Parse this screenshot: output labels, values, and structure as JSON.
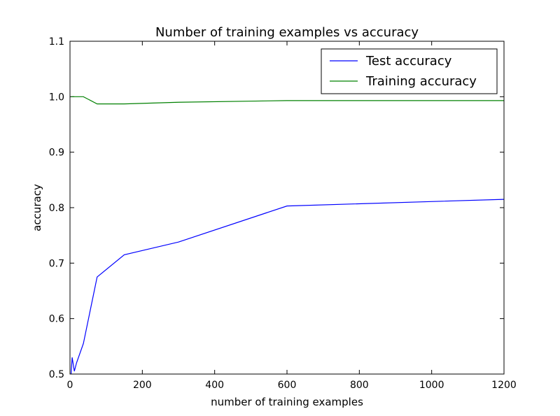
{
  "chart_data": {
    "type": "line",
    "title": "Number of training examples vs accuracy",
    "xlabel": "number of training examples",
    "ylabel": "accuracy",
    "xlim": [
      0,
      1200
    ],
    "ylim": [
      0.5,
      1.1
    ],
    "xticks": [
      0,
      200,
      400,
      600,
      800,
      1000,
      1200
    ],
    "yticks": [
      0.5,
      0.6,
      0.7,
      0.8,
      0.9,
      1.0,
      1.1
    ],
    "xtick_labels": [
      "0",
      "200",
      "400",
      "600",
      "800",
      "1000",
      "1200"
    ],
    "ytick_labels": [
      "0.5",
      "0.6",
      "0.7",
      "0.8",
      "0.9",
      "1.0",
      "1.1"
    ],
    "grid": false,
    "legend_position": "top-right",
    "series": [
      {
        "name": "Test accuracy",
        "color": "#0000ff",
        "x": [
          3,
          6,
          12,
          18,
          37,
          75,
          150,
          300,
          600,
          1200
        ],
        "y": [
          0.5,
          0.53,
          0.505,
          0.52,
          0.555,
          0.675,
          0.715,
          0.738,
          0.803,
          0.815
        ]
      },
      {
        "name": "Training accuracy",
        "color": "#008000",
        "x": [
          3,
          6,
          12,
          18,
          37,
          75,
          150,
          300,
          600,
          1200
        ],
        "y": [
          1.0,
          1.0,
          1.0,
          1.0,
          1.0,
          0.987,
          0.987,
          0.99,
          0.993,
          0.993
        ]
      }
    ]
  }
}
